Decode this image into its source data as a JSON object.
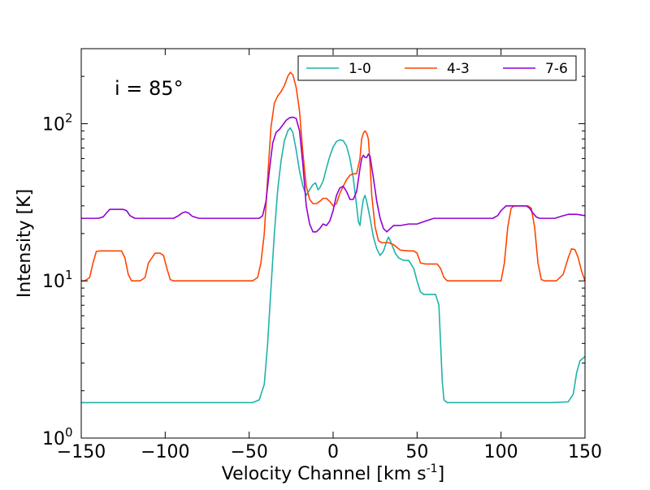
{
  "chart_data": {
    "type": "line",
    "title": "",
    "annotation": "i = 85°",
    "xlabel": "Velocity Channel [km s",
    "xlabel_sup": "-1",
    "xlabel_close": "]",
    "ylabel": "Intensity [K]",
    "xlim": [
      -150,
      150
    ],
    "ylim": [
      1,
      300
    ],
    "yscale": "log",
    "grid": false,
    "legend_position": "top-right",
    "x_ticks": [
      {
        "value": -150,
        "label": "−150"
      },
      {
        "value": -100,
        "label": "−100"
      },
      {
        "value": -50,
        "label": "−50"
      },
      {
        "value": 0,
        "label": "0"
      },
      {
        "value": 50,
        "label": "50"
      },
      {
        "value": 100,
        "label": "100"
      },
      {
        "value": 150,
        "label": "150"
      }
    ],
    "y_ticks": [
      {
        "value": 1,
        "base": "10",
        "exp": "0"
      },
      {
        "value": 10,
        "base": "10",
        "exp": "1"
      },
      {
        "value": 100,
        "base": "10",
        "exp": "2"
      }
    ],
    "series": [
      {
        "name": "1-0",
        "color": "#20b2aa",
        "points": [
          [
            -150,
            1.68
          ],
          [
            -115,
            1.68
          ],
          [
            -110,
            1.68
          ],
          [
            -90,
            1.68
          ],
          [
            -60,
            1.68
          ],
          [
            -48,
            1.68
          ],
          [
            -44,
            1.75
          ],
          [
            -41,
            2.2
          ],
          [
            -39,
            4
          ],
          [
            -37,
            9
          ],
          [
            -35,
            20
          ],
          [
            -33,
            38
          ],
          [
            -31,
            58
          ],
          [
            -29,
            78
          ],
          [
            -27,
            90
          ],
          [
            -25.5,
            94
          ],
          [
            -24,
            88
          ],
          [
            -22,
            68
          ],
          [
            -20,
            50
          ],
          [
            -18,
            40
          ],
          [
            -16,
            35
          ],
          [
            -14,
            38
          ],
          [
            -12,
            41
          ],
          [
            -10.5,
            42
          ],
          [
            -9,
            38
          ],
          [
            -8,
            39
          ],
          [
            -6,
            43
          ],
          [
            -4,
            52
          ],
          [
            -2,
            62
          ],
          [
            0,
            71
          ],
          [
            2,
            77
          ],
          [
            4,
            79
          ],
          [
            6,
            78
          ],
          [
            8,
            72
          ],
          [
            10,
            60
          ],
          [
            12,
            45
          ],
          [
            14,
            30
          ],
          [
            15,
            24
          ],
          [
            16,
            22.5
          ],
          [
            17,
            28
          ],
          [
            18,
            33
          ],
          [
            19,
            35
          ],
          [
            20,
            32
          ],
          [
            22,
            25
          ],
          [
            24,
            19
          ],
          [
            26,
            16
          ],
          [
            28,
            14.5
          ],
          [
            30,
            15.5
          ],
          [
            32,
            18
          ],
          [
            33,
            19
          ],
          [
            35,
            17
          ],
          [
            37,
            15
          ],
          [
            39,
            14
          ],
          [
            42,
            13.5
          ],
          [
            45,
            13.5
          ],
          [
            48,
            12
          ],
          [
            50,
            10
          ],
          [
            52,
            8.5
          ],
          [
            54,
            8.2
          ],
          [
            58,
            8.2
          ],
          [
            61,
            8.2
          ],
          [
            63,
            7
          ],
          [
            64,
            4
          ],
          [
            65,
            2.3
          ],
          [
            66,
            1.75
          ],
          [
            68,
            1.68
          ],
          [
            100,
            1.68
          ],
          [
            130,
            1.68
          ],
          [
            140,
            1.7
          ],
          [
            143,
            1.9
          ],
          [
            145,
            2.6
          ],
          [
            147,
            3.1
          ],
          [
            150,
            3.3
          ]
        ]
      },
      {
        "name": "4-3",
        "color": "#ff4500",
        "points": [
          [
            -150,
            10
          ],
          [
            -148,
            10
          ],
          [
            -145,
            10.5
          ],
          [
            -143,
            13
          ],
          [
            -141,
            15.4
          ],
          [
            -139,
            15.5
          ],
          [
            -130,
            15.5
          ],
          [
            -126,
            15.5
          ],
          [
            -124,
            14
          ],
          [
            -122,
            11
          ],
          [
            -120,
            10
          ],
          [
            -115,
            10
          ],
          [
            -112,
            10.5
          ],
          [
            -110,
            13
          ],
          [
            -106,
            15
          ],
          [
            -103,
            15
          ],
          [
            -101,
            14.5
          ],
          [
            -99,
            12
          ],
          [
            -97,
            10.2
          ],
          [
            -95,
            10
          ],
          [
            -60,
            10
          ],
          [
            -48,
            10
          ],
          [
            -45,
            10.5
          ],
          [
            -43,
            13
          ],
          [
            -41,
            20
          ],
          [
            -39,
            45
          ],
          [
            -37,
            95
          ],
          [
            -35,
            135
          ],
          [
            -33,
            150
          ],
          [
            -31,
            160
          ],
          [
            -29,
            175
          ],
          [
            -27,
            200
          ],
          [
            -25.5,
            212
          ],
          [
            -24,
            205
          ],
          [
            -22,
            170
          ],
          [
            -20,
            120
          ],
          [
            -18,
            65
          ],
          [
            -16,
            40
          ],
          [
            -14,
            33
          ],
          [
            -12,
            31
          ],
          [
            -10,
            31
          ],
          [
            -8,
            32
          ],
          [
            -6,
            33.5
          ],
          [
            -4,
            33.5
          ],
          [
            -2,
            32
          ],
          [
            0,
            30
          ],
          [
            2,
            31
          ],
          [
            4,
            36
          ],
          [
            6,
            40
          ],
          [
            8,
            44
          ],
          [
            10,
            47
          ],
          [
            12,
            48
          ],
          [
            14,
            48
          ],
          [
            16,
            60
          ],
          [
            17,
            80
          ],
          [
            18,
            87
          ],
          [
            19,
            90
          ],
          [
            20,
            87
          ],
          [
            21,
            80
          ],
          [
            22,
            55
          ],
          [
            23,
            35
          ],
          [
            25,
            22
          ],
          [
            27,
            18
          ],
          [
            29,
            17.5
          ],
          [
            33,
            17.5
          ],
          [
            36,
            17
          ],
          [
            40,
            15.7
          ],
          [
            45,
            15.5
          ],
          [
            48,
            15.5
          ],
          [
            50,
            15
          ],
          [
            52,
            13
          ],
          [
            55,
            12.8
          ],
          [
            58,
            12.8
          ],
          [
            62,
            12.8
          ],
          [
            64,
            12
          ],
          [
            66,
            10.5
          ],
          [
            68,
            10
          ],
          [
            95,
            10
          ],
          [
            100,
            10
          ],
          [
            102,
            13
          ],
          [
            104,
            22
          ],
          [
            106,
            29
          ],
          [
            108,
            30
          ],
          [
            112,
            30
          ],
          [
            116,
            30
          ],
          [
            118,
            29
          ],
          [
            120,
            22
          ],
          [
            122,
            13
          ],
          [
            124,
            10.2
          ],
          [
            126,
            10
          ],
          [
            133,
            10
          ],
          [
            137,
            11
          ],
          [
            140,
            14
          ],
          [
            142,
            16
          ],
          [
            144,
            15.8
          ],
          [
            146,
            14
          ],
          [
            148,
            11.5
          ],
          [
            150,
            10
          ]
        ]
      },
      {
        "name": "7-6",
        "color": "#9400d3",
        "points": [
          [
            -150,
            25
          ],
          [
            -140,
            25
          ],
          [
            -137,
            25.5
          ],
          [
            -135,
            27
          ],
          [
            -133,
            28.5
          ],
          [
            -130,
            28.5
          ],
          [
            -125,
            28.5
          ],
          [
            -123,
            28
          ],
          [
            -121,
            26
          ],
          [
            -118,
            25
          ],
          [
            -105,
            25
          ],
          [
            -95,
            25
          ],
          [
            -92,
            26
          ],
          [
            -90,
            27
          ],
          [
            -88,
            27.5
          ],
          [
            -86,
            27
          ],
          [
            -84,
            25.8
          ],
          [
            -80,
            25
          ],
          [
            -60,
            25
          ],
          [
            -44,
            25
          ],
          [
            -42,
            26
          ],
          [
            -40,
            32
          ],
          [
            -38,
            50
          ],
          [
            -36,
            75
          ],
          [
            -34,
            88
          ],
          [
            -32,
            92
          ],
          [
            -30,
            98
          ],
          [
            -28,
            105
          ],
          [
            -26,
            109
          ],
          [
            -24,
            110
          ],
          [
            -22,
            108
          ],
          [
            -20,
            90
          ],
          [
            -18,
            55
          ],
          [
            -16,
            30
          ],
          [
            -14,
            23
          ],
          [
            -12,
            20.5
          ],
          [
            -10,
            20.5
          ],
          [
            -8,
            21.5
          ],
          [
            -6,
            23
          ],
          [
            -4,
            22.5
          ],
          [
            -2,
            24
          ],
          [
            0,
            28
          ],
          [
            2,
            35
          ],
          [
            4,
            39
          ],
          [
            6,
            40
          ],
          [
            8,
            37
          ],
          [
            10,
            33
          ],
          [
            12,
            33
          ],
          [
            14,
            37
          ],
          [
            16,
            52
          ],
          [
            17,
            60
          ],
          [
            18,
            63
          ],
          [
            19,
            61
          ],
          [
            20,
            61
          ],
          [
            21,
            64
          ],
          [
            22,
            62
          ],
          [
            24,
            45
          ],
          [
            26,
            32
          ],
          [
            28,
            25
          ],
          [
            30,
            21.5
          ],
          [
            32,
            20.5
          ],
          [
            34,
            21.5
          ],
          [
            36,
            22.5
          ],
          [
            40,
            22.5
          ],
          [
            45,
            23
          ],
          [
            50,
            23
          ],
          [
            55,
            24
          ],
          [
            60,
            25
          ],
          [
            80,
            25
          ],
          [
            90,
            25
          ],
          [
            95,
            25
          ],
          [
            98,
            26
          ],
          [
            100,
            28
          ],
          [
            103,
            30
          ],
          [
            110,
            30
          ],
          [
            115,
            30
          ],
          [
            117,
            29
          ],
          [
            119,
            27
          ],
          [
            121,
            25.5
          ],
          [
            123,
            25
          ],
          [
            128,
            25
          ],
          [
            132,
            25
          ],
          [
            136,
            25.8
          ],
          [
            140,
            26.5
          ],
          [
            145,
            26.5
          ],
          [
            150,
            26
          ]
        ]
      }
    ]
  }
}
